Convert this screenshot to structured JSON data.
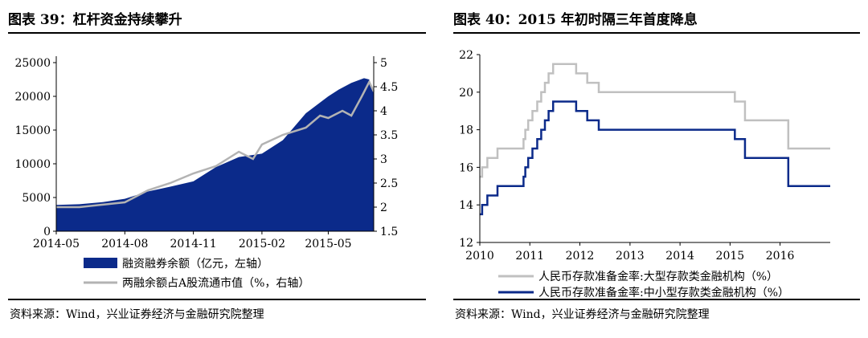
{
  "left": {
    "title": "图表 39：杠杆资金持续攀升",
    "source": "资料来源：Wind，兴业证券经济与金融研究院整理",
    "legend": [
      "融资融券余额（亿元，左轴）",
      "两融余额占A股流通市值（%，右轴）"
    ]
  },
  "right": {
    "title": "图表 40：2015 年初时隔三年首度降息",
    "source": "资料来源：Wind，兴业证券经济与金融研究院整理",
    "legend": [
      "人民币存款准备金率:大型存款类金融机构（%）",
      "人民币存款准备金率:中小型存款类金融机构（%）"
    ]
  },
  "chart_data": [
    {
      "type": "area",
      "x_ticks": [
        "2014-05",
        "2014-08",
        "2014-11",
        "2015-02",
        "2015-05"
      ],
      "ylim_left": [
        0,
        25000
      ],
      "yticks_left": [
        0,
        5000,
        10000,
        15000,
        20000,
        25000
      ],
      "ylim_right": [
        1.5,
        5
      ],
      "yticks_right": [
        1.5,
        2,
        2.5,
        3,
        3.5,
        4,
        4.5,
        5
      ],
      "grid": false,
      "legend_position": "bottom",
      "series": [
        {
          "name": "融资融券余额（亿元，左轴）",
          "axis": "left",
          "kind": "area",
          "color": "#0b2a8a",
          "x": [
            "2014-05-01",
            "2014-06-01",
            "2014-07-01",
            "2014-08-01",
            "2014-09-01",
            "2014-10-01",
            "2014-11-01",
            "2014-12-01",
            "2015-01-01",
            "2015-02-01",
            "2015-03-01",
            "2015-04-01",
            "2015-05-01",
            "2015-05-15",
            "2015-06-01",
            "2015-06-18",
            "2015-06-25",
            "2015-07-01"
          ],
          "y": [
            3900,
            4000,
            4300,
            4800,
            5900,
            6600,
            7400,
            9500,
            11000,
            11500,
            13500,
            17500,
            20000,
            21000,
            22000,
            22700,
            22500,
            20500
          ]
        },
        {
          "name": "两融余额占A股流通市值（%，右轴）",
          "axis": "right",
          "kind": "line",
          "color": "#b3b3b3",
          "x": [
            "2014-05-01",
            "2014-06-01",
            "2014-07-01",
            "2014-08-01",
            "2014-09-01",
            "2014-10-01",
            "2014-11-01",
            "2014-12-01",
            "2015-01-01",
            "2015-01-20",
            "2015-02-01",
            "2015-03-01",
            "2015-04-01",
            "2015-04-20",
            "2015-05-01",
            "2015-05-20",
            "2015-06-01",
            "2015-06-15",
            "2015-06-25",
            "2015-07-01"
          ],
          "y": [
            2.0,
            2.0,
            2.05,
            2.1,
            2.35,
            2.5,
            2.7,
            2.85,
            3.15,
            3.0,
            3.3,
            3.5,
            3.65,
            3.9,
            3.85,
            4.0,
            3.9,
            4.3,
            4.6,
            4.4
          ]
        }
      ]
    },
    {
      "type": "line",
      "step": true,
      "x_ticks": [
        "2010",
        "2011",
        "2012",
        "2013",
        "2014",
        "2015",
        "2016"
      ],
      "xlim": [
        "2010-01-01",
        "2017-01-01"
      ],
      "ylim": [
        12,
        22
      ],
      "yticks": [
        12,
        14,
        16,
        18,
        20,
        22
      ],
      "grid": false,
      "legend_position": "bottom",
      "series": [
        {
          "name": "人民币存款准备金率:大型存款类金融机构（%）",
          "color": "#c0c0c0",
          "x": [
            "2010-01-01",
            "2010-01-18",
            "2010-02-25",
            "2010-05-10",
            "2010-11-16",
            "2010-11-29",
            "2010-12-20",
            "2011-01-20",
            "2011-02-24",
            "2011-03-25",
            "2011-04-21",
            "2011-05-18",
            "2011-06-20",
            "2011-12-05",
            "2012-02-24",
            "2012-05-18",
            "2015-02-05",
            "2015-04-20",
            "2016-03-01",
            "2017-01-01"
          ],
          "y": [
            15.5,
            16.0,
            16.5,
            17.0,
            17.5,
            18.0,
            18.5,
            19.0,
            19.5,
            20.0,
            20.5,
            21.0,
            21.5,
            21.0,
            20.5,
            20.0,
            19.5,
            18.5,
            17.0,
            17.0
          ]
        },
        {
          "name": "人民币存款准备金率:中小型存款类金融机构（%）",
          "color": "#0b2a8a",
          "x": [
            "2010-01-01",
            "2010-01-18",
            "2010-02-25",
            "2010-05-10",
            "2010-11-16",
            "2010-11-29",
            "2010-12-20",
            "2011-01-20",
            "2011-02-24",
            "2011-03-25",
            "2011-04-21",
            "2011-05-18",
            "2011-06-20",
            "2011-12-05",
            "2012-02-24",
            "2012-05-18",
            "2015-02-05",
            "2015-04-20",
            "2016-03-01",
            "2017-01-01"
          ],
          "y": [
            13.5,
            14.0,
            14.5,
            15.0,
            15.5,
            16.0,
            16.5,
            17.0,
            17.5,
            18.0,
            18.5,
            19.0,
            19.5,
            19.0,
            18.5,
            18.0,
            17.5,
            16.5,
            15.0,
            15.0
          ]
        }
      ]
    }
  ]
}
